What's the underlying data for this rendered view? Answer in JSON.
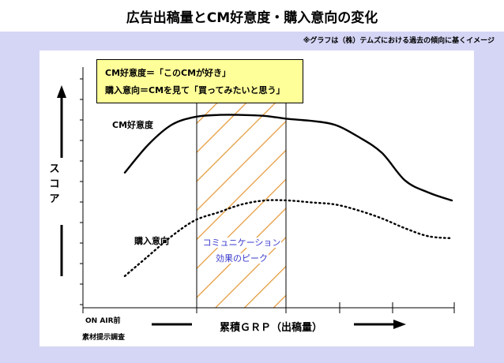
{
  "title": "広告出稿量とCM好意度・購入意向の変化",
  "note": "※グラフは（株）テムズにおける過去の傾向に基くイメージ",
  "definitions": {
    "line1": "CM好意度＝「このCMが好き」",
    "line2": "購入意向＝CMを見て「買ってみたいと思う」"
  },
  "peak_label": {
    "line1": "コミュニケーション",
    "line2": "効果のピーク"
  },
  "axis": {
    "y_label": "スコア",
    "x_label": "累積ＧＲＰ（出稿量）",
    "origin_line1": "ON  AIR前",
    "origin_line2": "素材提示調査"
  },
  "colors": {
    "panel": "#d5d5f5",
    "box": "#ffff99",
    "hatch": "#e69a3a",
    "peak_text": "#3a3acc"
  },
  "chart_data": {
    "type": "line",
    "title": "広告出稿量とCM好意度・購入意向の変化",
    "xlabel": "累積ＧＲＰ（出稿量）",
    "ylabel": "スコア",
    "x_ticks": [
      "ON  AIR前",
      "",
      "",
      "",
      "",
      ""
    ],
    "peak_region": {
      "label": "コミュニケーション効果のピーク",
      "x_range": [
        2,
        3
      ]
    },
    "series": [
      {
        "name": "CM好意度",
        "style": "solid",
        "x": [
          0.2,
          0.6,
          1.0,
          1.4,
          1.8,
          2.2,
          2.6,
          3.0,
          3.4,
          3.8,
          4.2,
          4.6,
          5.0,
          5.4,
          5.8
        ],
        "y": [
          6.2,
          7.6,
          8.6,
          9.0,
          9.1,
          9.1,
          9.05,
          8.9,
          8.8,
          8.6,
          8.0,
          7.2,
          5.8,
          5.2,
          4.8
        ]
      },
      {
        "name": "購入意向",
        "style": "dotted",
        "x": [
          0.2,
          0.6,
          1.0,
          1.4,
          1.8,
          2.2,
          2.6,
          3.0,
          3.4,
          3.8,
          4.2,
          4.6,
          5.0,
          5.4,
          5.8
        ],
        "y": [
          1.0,
          2.0,
          3.0,
          3.8,
          4.2,
          4.6,
          4.8,
          4.8,
          4.7,
          4.6,
          4.3,
          3.9,
          3.4,
          3.0,
          2.9
        ]
      }
    ]
  }
}
